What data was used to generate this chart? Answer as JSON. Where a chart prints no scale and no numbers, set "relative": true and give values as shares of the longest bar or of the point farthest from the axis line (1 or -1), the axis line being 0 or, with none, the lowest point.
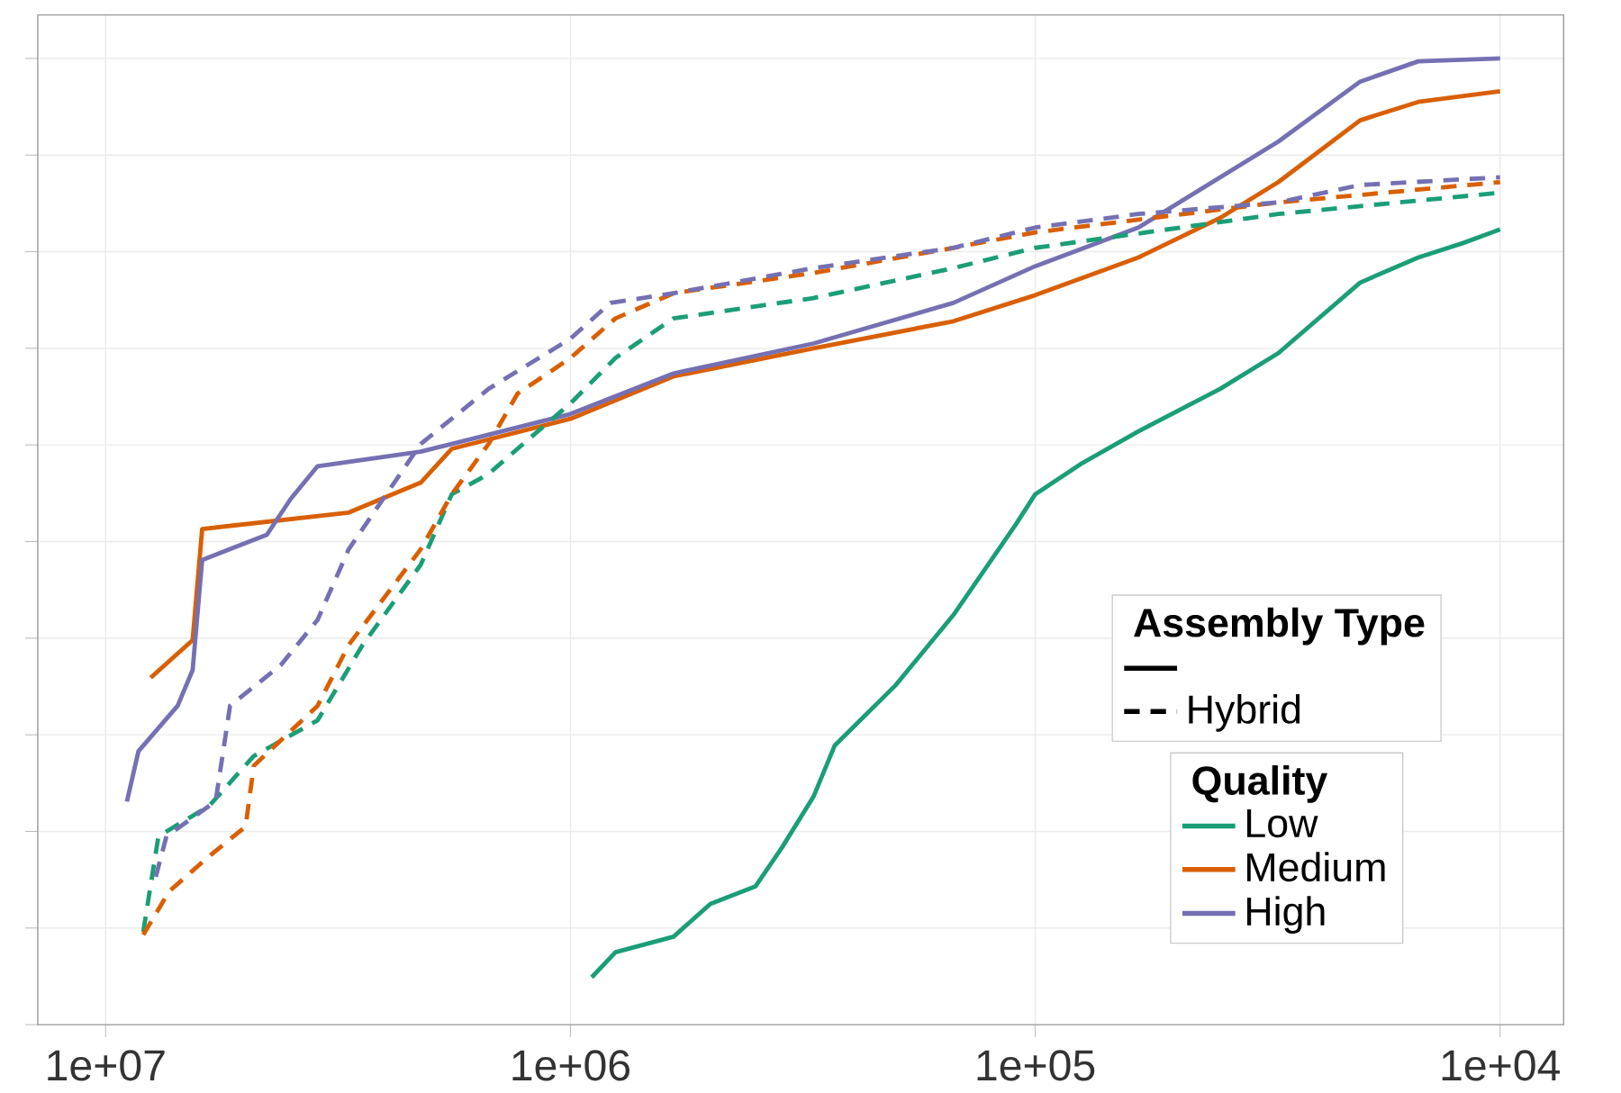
{
  "chart_data": {
    "type": "line",
    "relative": true,
    "log": "x",
    "grid": true,
    "legend": "bottom right",
    "legend_title": "Quality",
    "tick_labels": "x",
    "xlim": [
      14000000,
      7300
    ],
    "xticks": [
      {
        "value": 10000000,
        "label": "1e+07"
      },
      {
        "value": 1000000,
        "label": "1e+06"
      },
      {
        "value": 100000,
        "label": "1e+05"
      },
      {
        "value": 10000,
        "label": "1e+04"
      }
    ],
    "annotations": [
      "Assembly Type",
      "Hybrid"
    ],
    "series": [
      {
        "name": "Low",
        "color": "#1b9e77",
        "line_style": "solid",
        "x": [
          900000,
          800000,
          600000,
          500000,
          400000,
          350000,
          300000,
          270000,
          200000,
          150000,
          110000,
          100000,
          80000,
          60000,
          40000,
          30000,
          20000,
          15000,
          12000,
          10000
        ],
        "values": [
          0.049,
          0.075,
          0.091,
          0.125,
          0.143,
          0.184,
          0.236,
          0.289,
          0.351,
          0.424,
          0.518,
          0.549,
          0.58,
          0.614,
          0.658,
          0.695,
          0.768,
          0.794,
          0.809,
          0.823
        ]
      },
      {
        "name": "Medium",
        "color": "#d95f02",
        "line_style": "solid",
        "x": [
          8000000,
          6500000,
          6200000,
          3000000,
          2100000,
          1800000,
          1000000,
          600000,
          300000,
          150000,
          100000,
          60000,
          40000,
          30000,
          20000,
          15000,
          10000
        ],
        "values": [
          0.359,
          0.398,
          0.513,
          0.53,
          0.561,
          0.596,
          0.627,
          0.671,
          0.7,
          0.728,
          0.755,
          0.794,
          0.835,
          0.872,
          0.936,
          0.955,
          0.966
        ]
      },
      {
        "name": "High",
        "color": "#7570b3",
        "line_style": "solid",
        "x": [
          9000000,
          8500000,
          7000000,
          6500000,
          6200000,
          4500000,
          4000000,
          3500000,
          2100000,
          1000000,
          600000,
          300000,
          150000,
          100000,
          60000,
          30000,
          20000,
          15000,
          10000
        ],
        "values": [
          0.231,
          0.283,
          0.33,
          0.367,
          0.481,
          0.507,
          0.544,
          0.578,
          0.593,
          0.632,
          0.674,
          0.705,
          0.747,
          0.785,
          0.825,
          0.914,
          0.976,
          0.997,
          1.0
        ]
      },
      {
        "color": "#1b9e77",
        "line_style": "dashed",
        "x": [
          8300000,
          7700000,
          6000000,
          4800000,
          3500000,
          2800000,
          2100000,
          1800000,
          1500000,
          1300000,
          1000000,
          800000,
          600000,
          300000,
          150000,
          100000,
          30000,
          10000
        ],
        "values": [
          0.096,
          0.195,
          0.226,
          0.278,
          0.315,
          0.393,
          0.476,
          0.549,
          0.57,
          0.596,
          0.643,
          0.69,
          0.731,
          0.752,
          0.783,
          0.804,
          0.839,
          0.861
        ]
      },
      {
        "color": "#d95f02",
        "line_style": "dashed",
        "x": [
          8300000,
          7300000,
          6000000,
          5000000,
          4800000,
          3500000,
          3000000,
          2400000,
          2100000,
          1800000,
          1500000,
          1300000,
          1000000,
          800000,
          600000,
          300000,
          150000,
          100000,
          30000,
          10000
        ],
        "values": [
          0.093,
          0.138,
          0.174,
          0.205,
          0.268,
          0.33,
          0.393,
          0.455,
          0.492,
          0.549,
          0.601,
          0.653,
          0.69,
          0.731,
          0.757,
          0.778,
          0.804,
          0.82,
          0.851,
          0.872
        ]
      },
      {
        "color": "#7570b3",
        "line_style": "dashed",
        "x": [
          7800000,
          7400000,
          5800000,
          5400000,
          4200000,
          3500000,
          3000000,
          2100000,
          1500000,
          1000000,
          820000,
          600000,
          300000,
          150000,
          100000,
          60000,
          30000,
          20000,
          10000
        ],
        "values": [
          0.153,
          0.195,
          0.231,
          0.33,
          0.372,
          0.419,
          0.492,
          0.601,
          0.658,
          0.71,
          0.747,
          0.757,
          0.783,
          0.804,
          0.825,
          0.839,
          0.851,
          0.869,
          0.877
        ]
      }
    ]
  }
}
